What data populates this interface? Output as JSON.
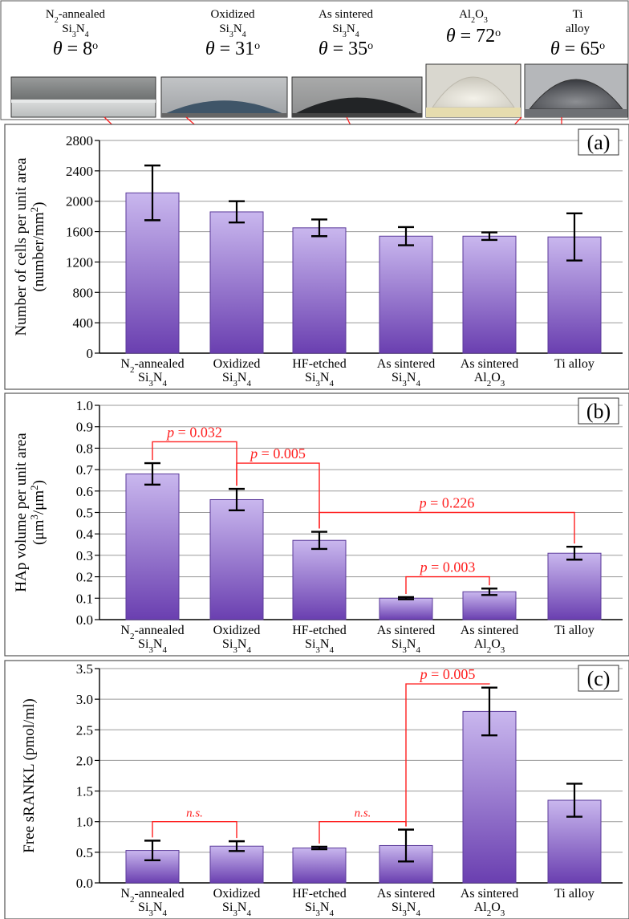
{
  "colors": {
    "bar_top": "#c9b7ee",
    "bar_bottom": "#6a3fb0",
    "bar_edge": "#5b3a9a",
    "annotation": "#ff2020",
    "grid": "#9a9a9a",
    "frame": "#444444"
  },
  "header": {
    "items": [
      {
        "name": "N2-annealed Si3N4",
        "theta": "8",
        "photo": "flat-gray-film"
      },
      {
        "name": "Oxidized Si3N4",
        "theta": "31",
        "photo": "blue-gray-droplet"
      },
      {
        "name": "As sintered Si3N4",
        "theta": "35",
        "photo": "dark-droplet"
      },
      {
        "name": "Al2O3",
        "theta": "72",
        "photo": "white-dome-droplet"
      },
      {
        "name": "Ti alloy",
        "theta": "65",
        "photo": "gray-dome-droplet"
      }
    ],
    "theta_prefix": "θ = ",
    "theta_unit": "o"
  },
  "chart_data": [
    {
      "type": "bar",
      "panel": "(a)",
      "categories": [
        "N2-annealed Si3N4",
        "Oxidized Si3N4",
        "HF-etched Si3N4",
        "As sintered Si3N4",
        "As sintered Al2O3",
        "Ti alloy"
      ],
      "values": [
        2110,
        1860,
        1650,
        1540,
        1540,
        1530
      ],
      "errors": [
        360,
        140,
        110,
        120,
        50,
        310
      ],
      "ylabel": "Number of cells per unit area (number/mm2)",
      "ylim": [
        0,
        2800
      ],
      "yticks": [
        "0",
        "400",
        "800",
        "1200",
        "1600",
        "2000",
        "2400",
        "2800"
      ],
      "grid": true,
      "annotations": []
    },
    {
      "type": "bar",
      "panel": "(b)",
      "categories": [
        "N2-annealed Si3N4",
        "Oxidized Si3N4",
        "HF-etched Si3N4",
        "As sintered Si3N4",
        "As sintered Al2O3",
        "Ti alloy"
      ],
      "values": [
        0.68,
        0.56,
        0.37,
        0.1,
        0.13,
        0.31
      ],
      "errors": [
        0.05,
        0.05,
        0.04,
        0.005,
        0.015,
        0.03
      ],
      "ylabel": "HAp volume per unit area (μm3/μm2)",
      "ylim": [
        0,
        1.0
      ],
      "yticks": [
        "0.0",
        "0.1",
        "0.2",
        "0.3",
        "0.4",
        "0.5",
        "0.6",
        "0.7",
        "0.8",
        "0.9",
        "1.0"
      ],
      "grid": true,
      "annotations": [
        {
          "text": "p = 0.032",
          "from": 0,
          "to": 1,
          "level": 0.83
        },
        {
          "text": "p = 0.005",
          "from": 1,
          "to": 2,
          "level": 0.73
        },
        {
          "text": "p = 0.226",
          "from": 2,
          "to": 5,
          "level": 0.5
        },
        {
          "text": "p = 0.003",
          "from": 3,
          "to": 4,
          "level": 0.2
        }
      ]
    },
    {
      "type": "bar",
      "panel": "(c)",
      "categories": [
        "N2-annealed Si3N4",
        "Oxidized Si3N4",
        "HF-etched Si3N4",
        "As sintered Si3N4",
        "As sintered Al2O3",
        "Ti alloy"
      ],
      "values": [
        0.53,
        0.6,
        0.57,
        0.61,
        2.8,
        1.35
      ],
      "errors": [
        0.16,
        0.08,
        0.02,
        0.26,
        0.39,
        0.27
      ],
      "ylabel": "Free sRANKL (pmol/ml)",
      "ylim": [
        0,
        3.5
      ],
      "yticks": [
        "0.0",
        "0.5",
        "1.0",
        "1.5",
        "2.0",
        "2.5",
        "3.0",
        "3.5"
      ],
      "grid": true,
      "annotations": [
        {
          "text": "n.s.",
          "from": 0,
          "to": 1,
          "level": 1.0
        },
        {
          "text": "n.s.",
          "from": 2,
          "to": 3,
          "level": 1.0
        },
        {
          "text": "p = 0.005",
          "from": 3,
          "to": 4,
          "level": 3.25
        }
      ]
    }
  ]
}
